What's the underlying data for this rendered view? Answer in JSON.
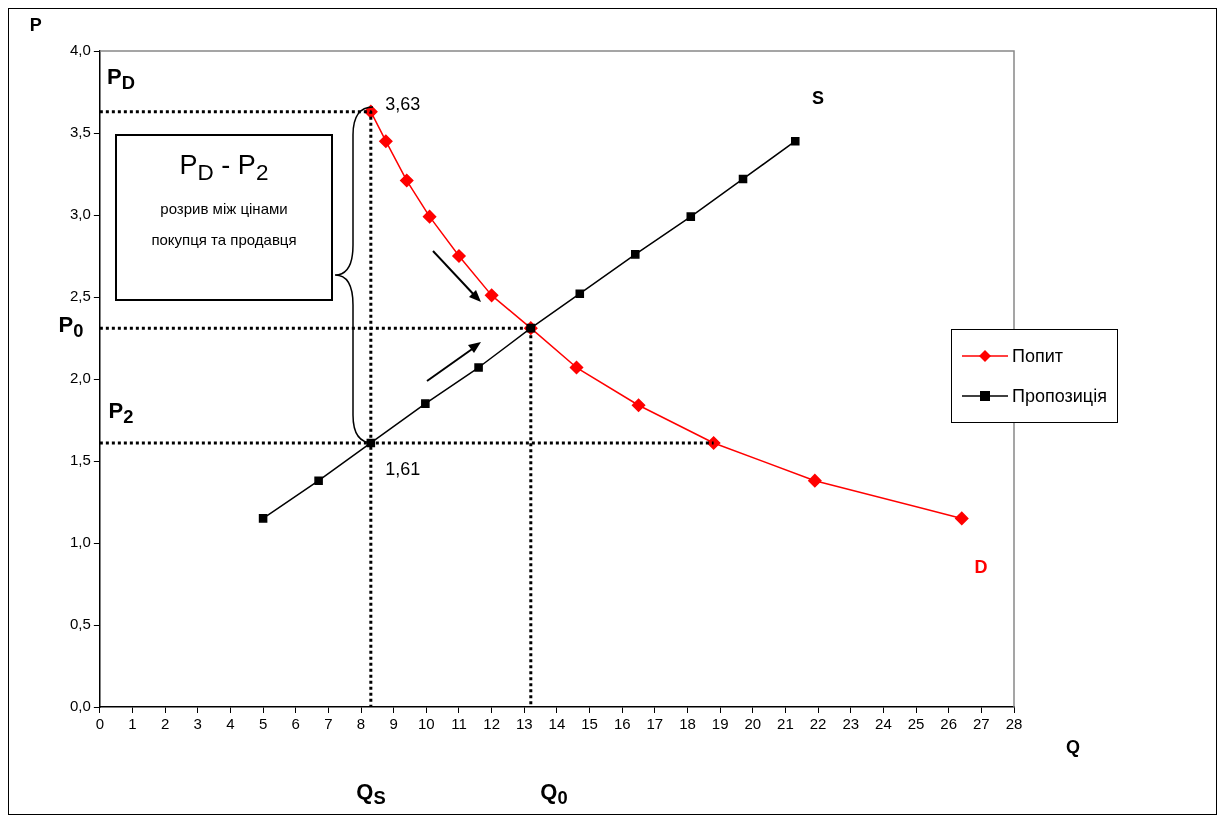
{
  "chart_data": {
    "type": "line",
    "ylabel": "P",
    "xlabel": "Q",
    "xlim": [
      0,
      28
    ],
    "xticks": [
      0,
      1,
      2,
      3,
      4,
      5,
      6,
      7,
      8,
      9,
      10,
      11,
      12,
      13,
      14,
      15,
      16,
      17,
      18,
      19,
      20,
      21,
      22,
      23,
      24,
      25,
      26,
      27,
      28
    ],
    "ylim": [
      0,
      4
    ],
    "yticks": [
      {
        "value": 0,
        "label": "0,0"
      },
      {
        "value": 0.5,
        "label": "0,5"
      },
      {
        "value": 1,
        "label": "1,0"
      },
      {
        "value": 1.5,
        "label": "1,5"
      },
      {
        "value": 2,
        "label": "2,0"
      },
      {
        "value": 2.5,
        "label": "2,5"
      },
      {
        "value": 3,
        "label": "3,0"
      },
      {
        "value": 3.5,
        "label": "3,5"
      },
      {
        "value": 4,
        "label": "4,0"
      }
    ],
    "grid": false,
    "legend": "right",
    "series": [
      {
        "name": "Попит",
        "color": "#ff0000",
        "marker": "diamond",
        "x": [
          8.3,
          8.76,
          9.4,
          10.1,
          11.0,
          12.0,
          13.2,
          14.6,
          16.5,
          18.8,
          21.9,
          26.4
        ],
        "values": [
          3.63,
          3.45,
          3.21,
          2.99,
          2.75,
          2.51,
          2.31,
          2.07,
          1.84,
          1.61,
          1.38,
          1.15
        ]
      },
      {
        "name": "Пропозиція",
        "color": "#000000",
        "marker": "square",
        "x": [
          5.0,
          6.7,
          8.3,
          9.97,
          11.6,
          13.2,
          14.7,
          16.4,
          18.1,
          19.7,
          21.3
        ],
        "values": [
          1.15,
          1.38,
          1.61,
          1.85,
          2.07,
          2.31,
          2.52,
          2.76,
          2.99,
          3.22,
          3.45
        ]
      },
      {
        "color": "#000000",
        "marker": "none",
        "line_style": "dotted",
        "x": [
          0,
          8.3,
          8.3
        ],
        "values": [
          3.63,
          3.63,
          0
        ]
      },
      {
        "color": "#000000",
        "marker": "none",
        "line_style": "dotted",
        "x": [
          0,
          13.2,
          13.2
        ],
        "values": [
          2.31,
          2.31,
          0
        ]
      },
      {
        "color": "#000000",
        "marker": "none",
        "line_style": "dotted",
        "x": [
          0,
          18.8
        ],
        "values": [
          1.61,
          1.61
        ]
      }
    ],
    "annotations": [
      "P$_{D}$ - P$_{2}$",
      "розрив між цінами",
      "покупця та продавця",
      "P$_{D}$",
      "P$_{0}$",
      "P$_{2}$",
      "Q$_{S}$",
      "Q$_{0}$",
      {
        "text": "3,63",
        "x": 8.3,
        "y": 3.63
      },
      {
        "text": "1,61",
        "x": 8.3,
        "y": 1.61
      },
      "S",
      "D"
    ]
  }
}
